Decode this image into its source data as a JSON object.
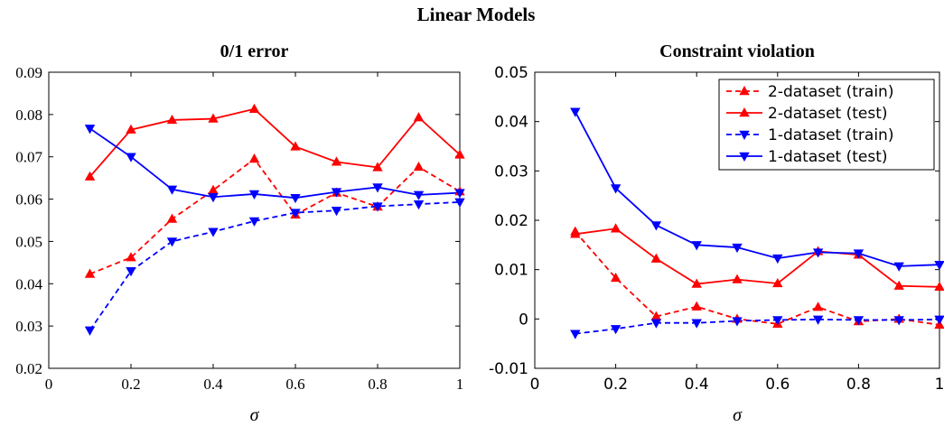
{
  "figure": {
    "title": "Linear Models"
  },
  "chart_data": [
    {
      "type": "line",
      "title": "0/1 error",
      "xlabel": "σ",
      "ylabel": "",
      "xlim": [
        0,
        1
      ],
      "ylim": [
        0.02,
        0.09
      ],
      "x_ticks": [
        0,
        0.2,
        0.4,
        0.6,
        0.8,
        1
      ],
      "x_tick_labels": [
        "0",
        "0.2",
        "0.4",
        "0.6",
        "0.8",
        "1"
      ],
      "y_ticks": [
        0.02,
        0.03,
        0.04,
        0.05,
        0.06,
        0.07,
        0.08,
        0.09
      ],
      "y_tick_labels": [
        "0.02",
        "0.03",
        "0.04",
        "0.05",
        "0.06",
        "0.07",
        "0.08",
        "0.09"
      ],
      "grid": false,
      "legend": "none",
      "x": [
        0.1,
        0.2,
        0.3,
        0.4,
        0.5,
        0.6,
        0.7,
        0.8,
        0.9,
        1.0
      ],
      "series": [
        {
          "name": "2-dataset (train)",
          "color": "#ff0000",
          "dash": true,
          "marker": "triangle-up",
          "values": [
            0.0423,
            0.0462,
            0.0553,
            0.0621,
            0.0695,
            0.0563,
            0.0615,
            0.0582,
            0.0676,
            0.0618
          ]
        },
        {
          "name": "2-dataset (test)",
          "color": "#ff0000",
          "dash": false,
          "marker": "triangle-up",
          "values": [
            0.0653,
            0.0764,
            0.0787,
            0.079,
            0.0813,
            0.0724,
            0.0688,
            0.0675,
            0.0793,
            0.0705
          ]
        },
        {
          "name": "1-dataset (train)",
          "color": "#0000ff",
          "dash": true,
          "marker": "triangle-down",
          "values": [
            0.029,
            0.043,
            0.05,
            0.0523,
            0.0548,
            0.0568,
            0.0573,
            0.0583,
            0.0588,
            0.0593
          ]
        },
        {
          "name": "1-dataset (test)",
          "color": "#0000ff",
          "dash": false,
          "marker": "triangle-down",
          "values": [
            0.0767,
            0.07,
            0.0623,
            0.0605,
            0.0612,
            0.0603,
            0.0617,
            0.0628,
            0.061,
            0.0615
          ]
        }
      ]
    },
    {
      "type": "line",
      "title": "Constraint violation",
      "xlabel": "σ",
      "ylabel": "",
      "xlim": [
        0,
        1
      ],
      "ylim": [
        -0.01,
        0.05
      ],
      "x_ticks": [
        0,
        0.2,
        0.4,
        0.6,
        0.8,
        1
      ],
      "x_tick_labels": [
        "0",
        "0.2",
        "0.4",
        "0.6",
        "0.8",
        "1"
      ],
      "y_ticks": [
        -0.01,
        0,
        0.01,
        0.02,
        0.03,
        0.04,
        0.05
      ],
      "y_tick_labels": [
        "-0.01",
        "0",
        "0.01",
        "0.02",
        "0.03",
        "0.04",
        "0.05"
      ],
      "grid": false,
      "legend": "top-right",
      "x": [
        0.1,
        0.2,
        0.3,
        0.4,
        0.5,
        0.6,
        0.7,
        0.8,
        0.9,
        1.0
      ],
      "series": [
        {
          "name": "2-dataset (train)",
          "color": "#ff0000",
          "dash": true,
          "marker": "triangle-up",
          "values": [
            0.0177,
            0.0083,
            0.0005,
            0.0025,
            -0.0,
            -0.001,
            0.0024,
            -0.0005,
            -0.0,
            -0.0012
          ]
        },
        {
          "name": "2-dataset (test)",
          "color": "#ff0000",
          "dash": false,
          "marker": "triangle-up",
          "values": [
            0.0172,
            0.0183,
            0.0122,
            0.0071,
            0.008,
            0.0072,
            0.0137,
            0.013,
            0.0067,
            0.0065
          ]
        },
        {
          "name": "1-dataset (train)",
          "color": "#0000ff",
          "dash": true,
          "marker": "triangle-down",
          "values": [
            -0.003,
            -0.002,
            -0.0008,
            -0.0008,
            -0.0004,
            -0.0002,
            -0.0001,
            -0.0002,
            -0.0002,
            -0.0001
          ]
        },
        {
          "name": "1-dataset (test)",
          "color": "#0000ff",
          "dash": false,
          "marker": "triangle-down",
          "values": [
            0.042,
            0.0265,
            0.019,
            0.015,
            0.0145,
            0.0123,
            0.0135,
            0.0133,
            0.0107,
            0.011
          ]
        }
      ]
    }
  ]
}
